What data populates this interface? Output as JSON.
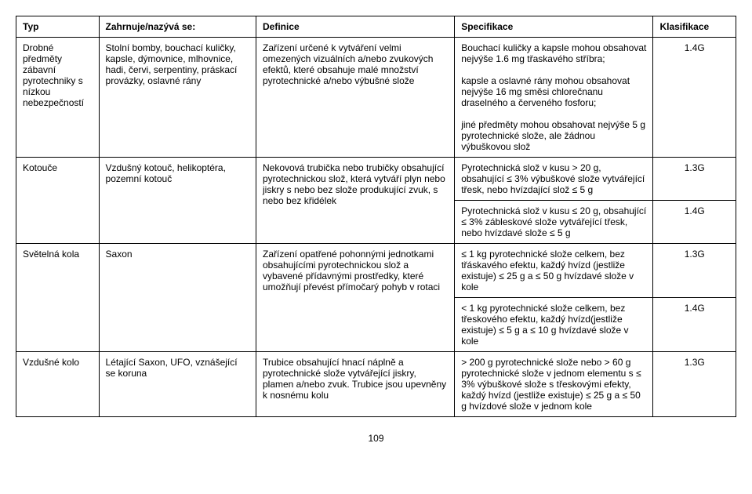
{
  "headers": {
    "typ": "Typ",
    "zahrnuje": "Zahrnuje/nazývá se:",
    "definice": "Definice",
    "specifikace": "Specifikace",
    "klasifikace": "Klasifikace"
  },
  "rows": [
    {
      "typ": "Drobné předměty zábavní pyrotechniky s nízkou nebezpečností",
      "zahrnuje": "Stolní bomby, bouchací kuličky, kapsle, dýmovnice, mlhovnice, hadi, červi, serpentiny, práskací provázky, oslavné rány",
      "definice": "Zařízení určené k vytváření velmi omezených vizuálních a/nebo zvukových efektů, které obsahuje malé množství pyrotechnické a/nebo výbušné slože",
      "spec_rows": [
        {
          "text": "Bouchací kuličky a kapsle mohou obsahovat nejvýše 1.6 mg třaskavého stříbra;\n\nkapsle a oslavné rány mohou obsahovat nejvýše 16 mg směsi chlorečnanu draselného a červeného fosforu;\n\njiné předměty mohou obsahovat nejvýše 5 g pyrotechnické slože, ale žádnou výbuškovou slož",
          "klas": "1.4G"
        }
      ]
    },
    {
      "typ": "Kotouče",
      "zahrnuje": "Vzdušný kotouč, helikoptéra, pozemní kotouč",
      "definice": "Nekovová trubička nebo trubičky obsahující pyrotechnickou slož, která vytváří plyn nebo jiskry s nebo bez slože produkující zvuk, s nebo bez křidélek",
      "spec_rows": [
        {
          "text": "Pyrotechnická slož v kusu > 20 g, obsahující ≤ 3% výbuškové slože vytvářející třesk, nebo hvízdající slož ≤ 5 g",
          "klas": "1.3G"
        },
        {
          "text": "Pyrotechnická slož v kusu ≤ 20 g, obsahující ≤ 3% zábleskové slože vytvářející třesk, nebo hvízdavé slože ≤ 5 g",
          "klas": "1.4G"
        }
      ]
    },
    {
      "typ": "Světelná kola",
      "zahrnuje": "Saxon",
      "definice": "Zařízení opatřené pohonnými jednotkami obsahujícími pyrotechnickou slož a vybavené přídavnými prostředky, které umožňují převést přímočarý pohyb v rotaci",
      "spec_rows": [
        {
          "text": "≤ 1 kg pyrotechnické slože celkem, bez třáskavého efektu, každý hvízd (jestliže existuje) ≤ 25 g a ≤ 50 g hvízdavé slože v kole",
          "klas": "1.3G"
        },
        {
          "text": "< 1 kg pyrotechnické slože celkem, bez třeskového efektu, každý hvízd(jestliže existuje) ≤ 5 g a ≤ 10 g hvízdavé slože v kole",
          "klas": "1.4G"
        }
      ]
    },
    {
      "typ": "Vzdušné kolo",
      "zahrnuje": "Létající Saxon, UFO, vznášející se koruna",
      "definice": "Trubice obsahující hnací náplně a pyrotechnické slože vytvářející jiskry, plamen a/nebo zvuk. Trubice jsou upevněny k nosnému kolu",
      "spec_rows": [
        {
          "text": "> 200 g pyrotechnické slože nebo > 60 g pyrotechnické slože v jednom elementu s ≤ 3% výbuškové slože s třeskovými efekty, každý hvízd (jestliže existuje) ≤ 25 g a ≤ 50 g hvízdové slože v jednom kole",
          "klas": "1.3G"
        }
      ]
    }
  ],
  "page_number": "109"
}
